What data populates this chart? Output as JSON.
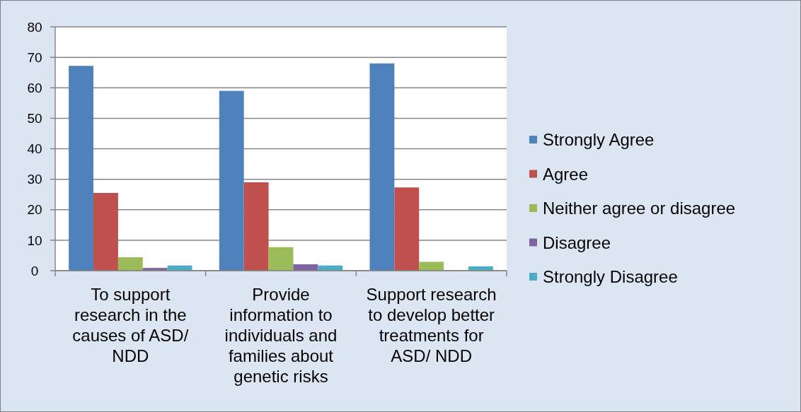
{
  "chart_data": {
    "type": "bar",
    "categories": [
      "To support research in the causes of ASD/ NDD",
      "Provide information to individuals and families about genetic risks",
      "Support research to develop better treatments for ASD/ NDD"
    ],
    "series": [
      {
        "name": "Strongly Agree",
        "color": "#4f81bd",
        "values": [
          67.2,
          59.0,
          68.0
        ]
      },
      {
        "name": "Agree",
        "color": "#c0504d",
        "values": [
          25.5,
          29.0,
          27.3
        ]
      },
      {
        "name": "Neither agree or disagree",
        "color": "#9bbb59",
        "values": [
          4.4,
          7.7,
          2.9
        ]
      },
      {
        "name": "Disagree",
        "color": "#8064a2",
        "values": [
          0.9,
          2.1,
          0
        ]
      },
      {
        "name": "Strongly Disagree",
        "color": "#4bacc6",
        "values": [
          1.7,
          1.7,
          1.4
        ]
      }
    ],
    "ylim": [
      0,
      80
    ],
    "yticks": [
      0,
      10,
      20,
      30,
      40,
      50,
      60,
      70,
      80
    ],
    "grid": "y",
    "legend": "right"
  }
}
